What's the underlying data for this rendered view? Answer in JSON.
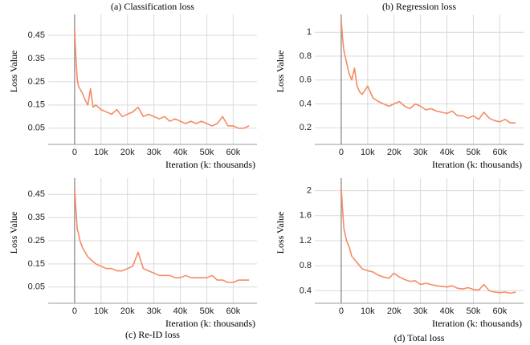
{
  "chart_data": [
    {
      "type": "line",
      "title": "(a) Classification loss",
      "xlabel": "Iteration (k: thousands)",
      "ylabel": "Loss Value",
      "x": [
        0,
        500,
        1000,
        1500,
        2000,
        3000,
        4000,
        5000,
        6000,
        7000,
        8000,
        10000,
        12000,
        14000,
        16000,
        18000,
        20000,
        22000,
        24000,
        26000,
        28000,
        30000,
        32000,
        34000,
        36000,
        38000,
        40000,
        42000,
        44000,
        46000,
        48000,
        50000,
        52000,
        54000,
        56000,
        58000,
        60000,
        62000,
        64000,
        66000
      ],
      "values": [
        0.48,
        0.35,
        0.26,
        0.23,
        0.22,
        0.2,
        0.17,
        0.15,
        0.22,
        0.14,
        0.15,
        0.13,
        0.12,
        0.11,
        0.13,
        0.1,
        0.11,
        0.12,
        0.14,
        0.1,
        0.11,
        0.1,
        0.09,
        0.1,
        0.08,
        0.09,
        0.08,
        0.07,
        0.08,
        0.07,
        0.08,
        0.07,
        0.06,
        0.07,
        0.1,
        0.06,
        0.06,
        0.05,
        0.05,
        0.06
      ],
      "color": "#f58b64",
      "xlim": [
        -10000,
        69000
      ],
      "ylim": [
        -0.02,
        0.54
      ],
      "xticks": [
        {
          "value": 0,
          "label": "0"
        },
        {
          "value": 10000,
          "label": "10k"
        },
        {
          "value": 20000,
          "label": "20k"
        },
        {
          "value": 30000,
          "label": "30k"
        },
        {
          "value": 40000,
          "label": "40k"
        },
        {
          "value": 50000,
          "label": "50k"
        },
        {
          "value": 60000,
          "label": "60k"
        }
      ],
      "yticks": [
        0.05,
        0.15,
        0.25,
        0.35,
        0.45
      ],
      "grid": true
    },
    {
      "type": "line",
      "title": "(b) Regression loss",
      "xlabel": "Iteration (k: thousands)",
      "ylabel": "Loss Value",
      "x": [
        0,
        500,
        1000,
        1500,
        2000,
        3000,
        4000,
        5000,
        6000,
        7000,
        8000,
        10000,
        12000,
        14000,
        16000,
        18000,
        20000,
        22000,
        24000,
        26000,
        28000,
        30000,
        32000,
        34000,
        36000,
        38000,
        40000,
        42000,
        44000,
        46000,
        48000,
        50000,
        52000,
        54000,
        56000,
        58000,
        60000,
        62000,
        64000,
        66000
      ],
      "values": [
        1.1,
        0.95,
        0.85,
        0.8,
        0.75,
        0.65,
        0.6,
        0.7,
        0.55,
        0.5,
        0.48,
        0.55,
        0.45,
        0.42,
        0.4,
        0.38,
        0.4,
        0.42,
        0.38,
        0.36,
        0.4,
        0.38,
        0.35,
        0.36,
        0.34,
        0.33,
        0.32,
        0.34,
        0.3,
        0.3,
        0.28,
        0.3,
        0.27,
        0.33,
        0.28,
        0.26,
        0.25,
        0.27,
        0.24,
        0.24
      ],
      "color": "#f58b64",
      "xlim": [
        -10000,
        69000
      ],
      "ylim": [
        0.06,
        1.15
      ],
      "xticks": [
        {
          "value": 0,
          "label": "0"
        },
        {
          "value": 10000,
          "label": "10k"
        },
        {
          "value": 20000,
          "label": "20k"
        },
        {
          "value": 30000,
          "label": "30k"
        },
        {
          "value": 40000,
          "label": "40k"
        },
        {
          "value": 50000,
          "label": "50k"
        },
        {
          "value": 60000,
          "label": "60k"
        }
      ],
      "yticks": [
        0.2,
        0.4,
        0.6,
        0.8,
        1
      ],
      "grid": true
    },
    {
      "type": "line",
      "title": "(c) Re-ID loss",
      "xlabel": "Iteration (k: thousands)",
      "ylabel": "Loss Value",
      "x": [
        0,
        500,
        1000,
        1500,
        2000,
        3000,
        4000,
        5000,
        6000,
        7000,
        8000,
        10000,
        12000,
        14000,
        16000,
        18000,
        20000,
        22000,
        24000,
        26000,
        28000,
        30000,
        32000,
        34000,
        36000,
        38000,
        40000,
        42000,
        44000,
        46000,
        48000,
        50000,
        52000,
        54000,
        56000,
        58000,
        60000,
        62000,
        64000,
        66000
      ],
      "values": [
        0.48,
        0.38,
        0.3,
        0.28,
        0.25,
        0.22,
        0.2,
        0.18,
        0.17,
        0.16,
        0.15,
        0.14,
        0.13,
        0.13,
        0.12,
        0.12,
        0.13,
        0.14,
        0.2,
        0.13,
        0.12,
        0.11,
        0.1,
        0.1,
        0.1,
        0.09,
        0.09,
        0.1,
        0.09,
        0.09,
        0.09,
        0.09,
        0.1,
        0.08,
        0.08,
        0.07,
        0.07,
        0.08,
        0.08,
        0.08
      ],
      "color": "#f58b64",
      "xlim": [
        -10000,
        69000
      ],
      "ylim": [
        -0.02,
        0.52
      ],
      "xticks": [
        {
          "value": 0,
          "label": "0"
        },
        {
          "value": 10000,
          "label": "10k"
        },
        {
          "value": 20000,
          "label": "20k"
        },
        {
          "value": 30000,
          "label": "30k"
        },
        {
          "value": 40000,
          "label": "40k"
        },
        {
          "value": 50000,
          "label": "50k"
        },
        {
          "value": 60000,
          "label": "60k"
        }
      ],
      "yticks": [
        0.05,
        0.15,
        0.25,
        0.35,
        0.45
      ],
      "grid": true
    },
    {
      "type": "line",
      "title": "(d) Total loss",
      "xlabel": "Iteration (k: thousands)",
      "ylabel": "Loss Value",
      "x": [
        0,
        500,
        1000,
        1500,
        2000,
        3000,
        4000,
        5000,
        6000,
        7000,
        8000,
        10000,
        12000,
        14000,
        16000,
        18000,
        20000,
        22000,
        24000,
        26000,
        28000,
        30000,
        32000,
        34000,
        36000,
        38000,
        40000,
        42000,
        44000,
        46000,
        48000,
        50000,
        52000,
        54000,
        56000,
        58000,
        60000,
        62000,
        64000,
        66000
      ],
      "values": [
        2.05,
        1.7,
        1.4,
        1.3,
        1.2,
        1.1,
        0.95,
        0.9,
        0.85,
        0.8,
        0.75,
        0.72,
        0.7,
        0.65,
        0.62,
        0.6,
        0.68,
        0.62,
        0.58,
        0.55,
        0.56,
        0.5,
        0.52,
        0.5,
        0.48,
        0.47,
        0.46,
        0.48,
        0.44,
        0.43,
        0.45,
        0.42,
        0.41,
        0.5,
        0.4,
        0.38,
        0.37,
        0.38,
        0.36,
        0.38
      ],
      "color": "#f58b64",
      "xlim": [
        -10000,
        69000
      ],
      "ylim": [
        0.2,
        2.2
      ],
      "xticks": [
        {
          "value": 0,
          "label": "0"
        },
        {
          "value": 10000,
          "label": "10k"
        },
        {
          "value": 20000,
          "label": "20k"
        },
        {
          "value": 30000,
          "label": "30k"
        },
        {
          "value": 40000,
          "label": "40k"
        },
        {
          "value": 50000,
          "label": "50k"
        },
        {
          "value": 60000,
          "label": "60k"
        }
      ],
      "yticks": [
        0.4,
        0.8,
        1.2,
        1.6,
        2
      ],
      "grid": true
    }
  ]
}
